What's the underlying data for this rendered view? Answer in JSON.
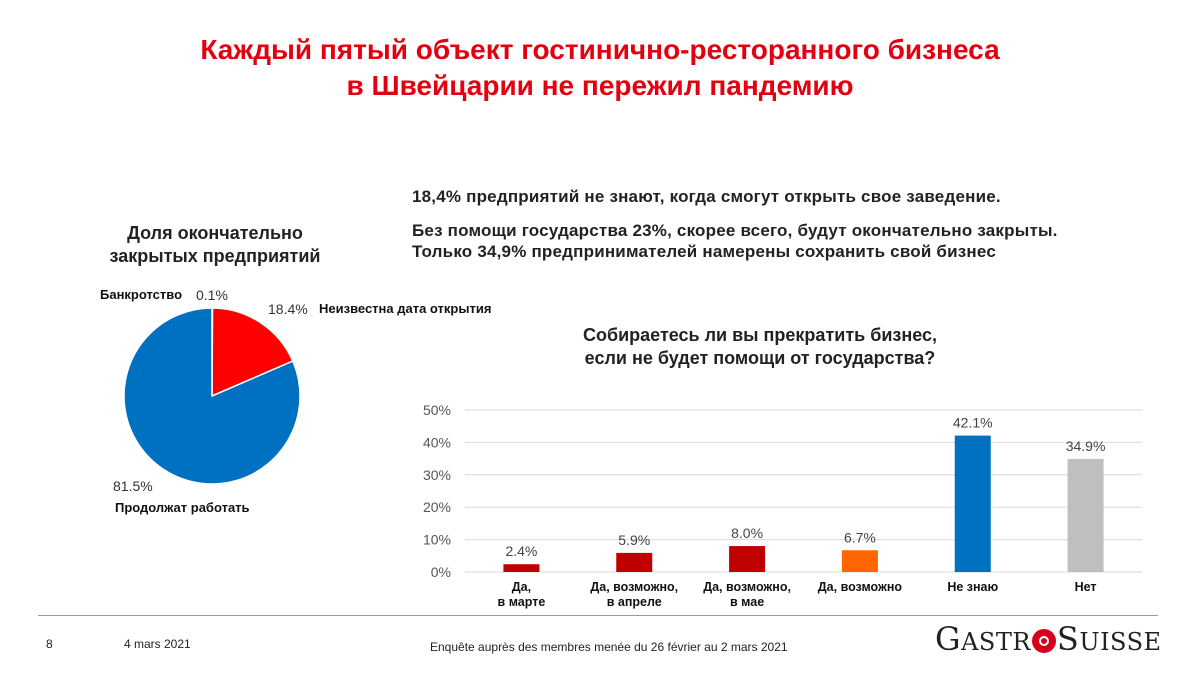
{
  "title": {
    "line1": "Каждый пятый объект гостинично-ресторанного бизнеса",
    "line2": "в Швейцарии не пережил пандемию"
  },
  "facts": [
    "18,4% предприятий не знают, когда смогут открыть свое заведение.",
    "Без помощи государства 23%, скорее всего, будут окончательно закрыты.",
    "Только 34,9% предпринимателей намерены сохранить свой бизнес"
  ],
  "chart_data": [
    {
      "type": "pie",
      "title_line1": "Доля окончательно",
      "title_line2": "закрытых предприятий",
      "slices": [
        {
          "name": "Банкротство",
          "value": 0.1,
          "label": "0.1%",
          "color": "#7fb2e5"
        },
        {
          "name": "Неизвестна дата открытия",
          "value": 18.4,
          "label": "18.4%",
          "color": "#ff0000"
        },
        {
          "name": "Продолжат работать",
          "value": 81.5,
          "label": "81.5%",
          "color": "#0070c0"
        }
      ]
    },
    {
      "type": "bar",
      "title_line1": "Собираетесь ли вы прекратить бизнес,",
      "title_line2": "если не будет помощи от государства?",
      "categories": [
        [
          "Да,",
          "в марте"
        ],
        [
          "Да, возможно,",
          "в апреле"
        ],
        [
          "Да, возможно,",
          "в мае"
        ],
        [
          "Да, возможно"
        ],
        [
          "Не знаю"
        ],
        [
          "Нет"
        ]
      ],
      "values": [
        2.4,
        5.9,
        8.0,
        6.7,
        42.1,
        34.9
      ],
      "value_labels": [
        "2.4%",
        "5.9%",
        "8.0%",
        "6.7%",
        "42.1%",
        "34.9%"
      ],
      "colors": [
        "#c00000",
        "#c00000",
        "#c00000",
        "#ff6600",
        "#0070c0",
        "#bfbfbf"
      ],
      "ylim": [
        0,
        50
      ],
      "yticks": [
        "0%",
        "10%",
        "20%",
        "30%",
        "40%",
        "50%"
      ],
      "grid": true
    }
  ],
  "footer": {
    "page": "8",
    "date": "4 mars 2021",
    "source": "Enquête auprès des membres menée du 26 février au 2 mars 2021",
    "logo": {
      "g": "G",
      "astr": "ASTR",
      "s": "S",
      "uisse": "UISSE"
    }
  }
}
